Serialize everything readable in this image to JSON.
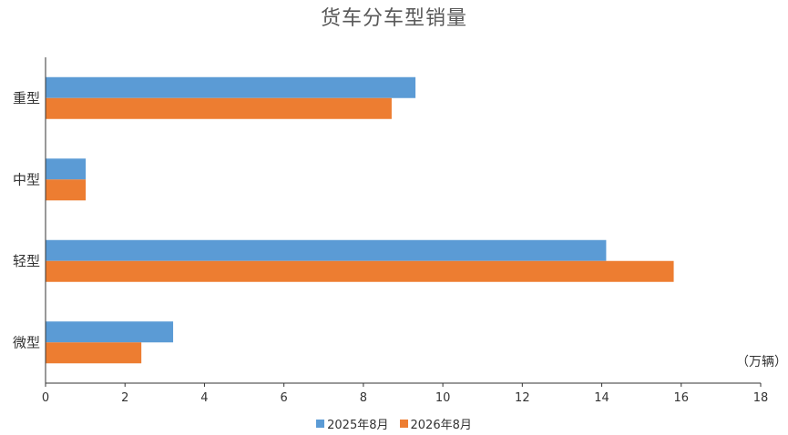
{
  "chart_data": {
    "type": "bar",
    "orientation": "horizontal",
    "title": "货车分车型销量",
    "unit": "（万辆）",
    "categories": [
      "重型",
      "中型",
      "轻型",
      "微型"
    ],
    "series": [
      {
        "name": "2025年8月",
        "color": "#5B9BD5",
        "values": [
          9.3,
          1.0,
          14.1,
          3.2
        ]
      },
      {
        "name": "2026年8月",
        "color": "#ED7D31",
        "values": [
          8.7,
          1.0,
          15.8,
          2.4
        ]
      }
    ],
    "xlim": [
      0,
      18
    ],
    "xticks": [
      "0",
      "2",
      "4",
      "6",
      "8",
      "10",
      "12",
      "14",
      "16",
      "18"
    ],
    "grid": false,
    "legend_position": "bottom"
  }
}
